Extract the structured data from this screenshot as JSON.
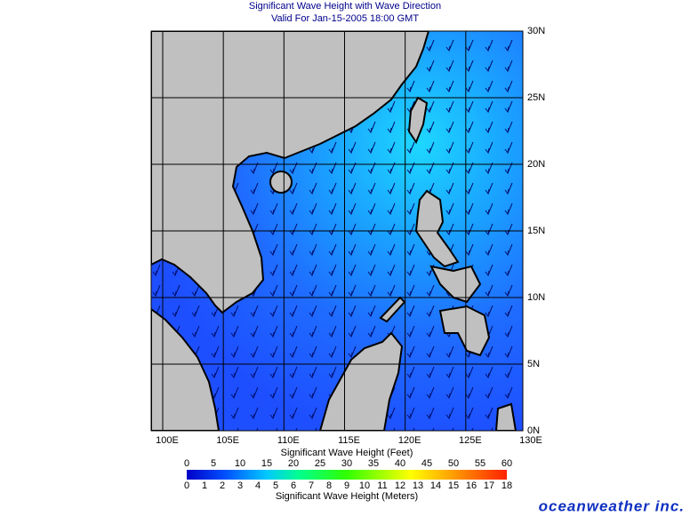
{
  "title": "Significant Wave Height with Wave Direction",
  "subtitle": "Valid For Jan-15-2005 18:00 GMT",
  "lon_labels": [
    "100E",
    "105E",
    "110E",
    "115E",
    "120E",
    "125E",
    "130E"
  ],
  "lat_labels": [
    "30N",
    "25N",
    "20N",
    "15N",
    "10N",
    "5N",
    "0N"
  ],
  "colorbar": {
    "feet_label": "Significant Wave Height (Feet)",
    "feet_ticks": [
      "0",
      "5",
      "10",
      "15",
      "20",
      "25",
      "30",
      "35",
      "40",
      "45",
      "50",
      "55",
      "60"
    ],
    "meters_label": "Significant Wave Height (Meters)",
    "meters_ticks": [
      "0",
      "1",
      "2",
      "3",
      "4",
      "5",
      "6",
      "7",
      "8",
      "9",
      "10",
      "11",
      "12",
      "13",
      "14",
      "15",
      "16",
      "17",
      "18"
    ]
  },
  "brand": "oceanweather inc."
}
